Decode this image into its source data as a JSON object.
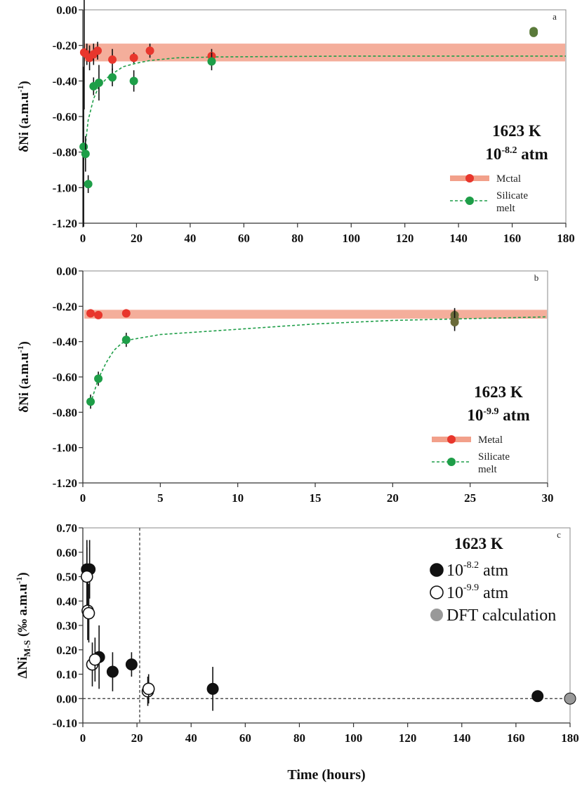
{
  "chart_data": [
    {
      "type": "scatter",
      "panel_label": "a",
      "ylabel_main": "δNi (a.m.u",
      "ylabel_sup": "-1",
      "ylabel_end": ")",
      "xlim": [
        0,
        180
      ],
      "ylim": [
        -1.2,
        0
      ],
      "x_ticks": [
        "0",
        "20",
        "40",
        "60",
        "80",
        "100",
        "120",
        "140",
        "160",
        "180"
      ],
      "y_ticks": [
        "0.00",
        "-0.20",
        "-0.40",
        "-0.60",
        "-0.80",
        "-1.00",
        "-1.20"
      ],
      "annotation": {
        "temperature": "1623 K",
        "pressure_base": "10",
        "pressure_exp": "-8.2",
        "pressure_unit": " atm"
      },
      "legend": [
        "Mctal",
        "Silicate",
        "melt"
      ],
      "metal_band": {
        "ymin": -0.29,
        "ymax": -0.19
      },
      "silicate_fit": [
        [
          0.3,
          -0.85
        ],
        [
          2,
          -0.62
        ],
        [
          4,
          -0.5
        ],
        [
          6,
          -0.43
        ],
        [
          10,
          -0.37
        ],
        [
          15,
          -0.32
        ],
        [
          20,
          -0.3
        ],
        [
          25,
          -0.285
        ],
        [
          35,
          -0.27
        ],
        [
          50,
          -0.265
        ],
        [
          100,
          -0.26
        ],
        [
          180,
          -0.26
        ]
      ],
      "series": [
        {
          "name": "Mctal",
          "color": "#e8362c",
          "points": [
            {
              "x": 0.5,
              "y": -0.24,
              "err": 0.32
            },
            {
              "x": 1.5,
              "y": -0.25,
              "err": 0.06
            },
            {
              "x": 2.5,
              "y": -0.27,
              "err": 0.07
            },
            {
              "x": 4,
              "y": -0.25,
              "err": 0.06
            },
            {
              "x": 5.5,
              "y": -0.23,
              "err": 0.05
            },
            {
              "x": 11,
              "y": -0.28,
              "err": 0.06
            },
            {
              "x": 19,
              "y": -0.27,
              "err": 0.03
            },
            {
              "x": 25,
              "y": -0.23,
              "err": 0.04
            },
            {
              "x": 48,
              "y": -0.26,
              "err": 0.04
            }
          ]
        },
        {
          "name": "Silicate melt",
          "color": "#1e9e48",
          "points": [
            {
              "x": 0.3,
              "y": -0.77,
              "err": 0.45
            },
            {
              "x": 1,
              "y": -0.81,
              "err": 0.1
            },
            {
              "x": 2,
              "y": -0.98,
              "err": 0.05
            },
            {
              "x": 4,
              "y": -0.43,
              "err": 0.05
            },
            {
              "x": 6,
              "y": -0.41,
              "err": 0.1
            },
            {
              "x": 11,
              "y": -0.38,
              "err": 0.05
            },
            {
              "x": 19,
              "y": -0.4,
              "err": 0.06
            },
            {
              "x": 48,
              "y": -0.29,
              "err": 0.05
            }
          ]
        },
        {
          "name": "",
          "color": "#5a7a3a",
          "points": [
            {
              "x": 168,
              "y": -0.12,
              "err": 0.02
            },
            {
              "x": 168,
              "y": -0.13,
              "err": 0.02
            }
          ]
        }
      ]
    },
    {
      "type": "scatter",
      "panel_label": "b",
      "ylabel_main": "δNi (a.m.u",
      "ylabel_sup": "-1",
      "ylabel_end": ")",
      "xlim": [
        0,
        30
      ],
      "ylim": [
        -1.2,
        0
      ],
      "x_ticks": [
        "0",
        "5",
        "10",
        "15",
        "20",
        "25",
        "30"
      ],
      "y_ticks": [
        "0.00",
        "-0.20",
        "-0.40",
        "-0.60",
        "-0.80",
        "-1.00",
        "-1.20"
      ],
      "annotation": {
        "temperature": "1623 K",
        "pressure_base": "10",
        "pressure_exp": "-9.9",
        "pressure_unit": " atm"
      },
      "legend": [
        "Metal",
        "Silicate",
        "melt"
      ],
      "metal_band": {
        "ymin": -0.27,
        "ymax": -0.22
      },
      "silicate_fit": [
        [
          0.5,
          -0.75
        ],
        [
          1,
          -0.61
        ],
        [
          1.5,
          -0.52
        ],
        [
          2,
          -0.45
        ],
        [
          2.5,
          -0.41
        ],
        [
          3,
          -0.39
        ],
        [
          5,
          -0.36
        ],
        [
          10,
          -0.33
        ],
        [
          15,
          -0.3
        ],
        [
          20,
          -0.28
        ],
        [
          25,
          -0.27
        ],
        [
          30,
          -0.26
        ]
      ],
      "series": [
        {
          "name": "Metal",
          "color": "#e8362c",
          "points": [
            {
              "x": 0.5,
              "y": -0.24,
              "err": 0.02
            },
            {
              "x": 1.0,
              "y": -0.25,
              "err": 0.02
            },
            {
              "x": 2.8,
              "y": -0.24,
              "err": 0.02
            }
          ]
        },
        {
          "name": "Silicate melt",
          "color": "#1e9e48",
          "points": [
            {
              "x": 0.5,
              "y": -0.74,
              "err": 0.04
            },
            {
              "x": 1.0,
              "y": -0.61,
              "err": 0.04
            },
            {
              "x": 2.8,
              "y": -0.39,
              "err": 0.04
            }
          ]
        },
        {
          "name": "",
          "color": "#6b6b3a",
          "points": [
            {
              "x": 24,
              "y": -0.25,
              "err": 0.04
            },
            {
              "x": 24,
              "y": -0.27,
              "err": 0.05
            },
            {
              "x": 24,
              "y": -0.29,
              "err": 0.05
            }
          ]
        }
      ]
    },
    {
      "type": "scatter",
      "panel_label": "c",
      "ylabel_main": "ΔNi",
      "ylabel_sub": "M-S",
      "ylabel_mid": " (‰ a.m.u",
      "ylabel_sup": "-1",
      "ylabel_end": ")",
      "xlabel": "Time (hours)",
      "xlim": [
        0,
        180
      ],
      "ylim": [
        -0.1,
        0.7
      ],
      "x_ticks": [
        "0",
        "20",
        "40",
        "60",
        "80",
        "100",
        "120",
        "140",
        "160",
        "180"
      ],
      "y_ticks": [
        "0.70",
        "0.60",
        "0.50",
        "0.40",
        "0.30",
        "0.20",
        "0.10",
        "0.00",
        "-0.10"
      ],
      "legend_title": "1623 K",
      "legend": [
        {
          "base": "10",
          "exp": "-8.2",
          "unit": " atm"
        },
        {
          "base": "10",
          "exp": "-9.9",
          "unit": " atm"
        },
        {
          "base": "DFT calculation",
          "exp": "",
          "unit": ""
        }
      ],
      "vline_x": 21,
      "hline_y": 0,
      "series": [
        {
          "name": "10-8.2 atm",
          "color": "#111111",
          "points": [
            {
              "x": 1.5,
              "y": 0.53,
              "err": 0.12
            },
            {
              "x": 2.5,
              "y": 0.53,
              "err": 0.12
            },
            {
              "x": 6,
              "y": 0.17,
              "err": 0.13
            },
            {
              "x": 11,
              "y": 0.11,
              "err": 0.08
            },
            {
              "x": 18,
              "y": 0.14,
              "err": 0.05
            },
            {
              "x": 48,
              "y": 0.04,
              "err": 0.09
            },
            {
              "x": 168,
              "y": 0.01,
              "err": 0.01
            }
          ]
        },
        {
          "name": "10-9.9 atm",
          "color": "#ffffff",
          "points": [
            {
              "x": 1.5,
              "y": 0.5,
              "err": 0.12
            },
            {
              "x": 1.8,
              "y": 0.36,
              "err": 0.12
            },
            {
              "x": 2.2,
              "y": 0.35,
              "err": 0.12
            },
            {
              "x": 3.5,
              "y": 0.14,
              "err": 0.09
            },
            {
              "x": 4.5,
              "y": 0.16,
              "err": 0.09
            },
            {
              "x": 24,
              "y": 0.03,
              "err": 0.06
            },
            {
              "x": 24.3,
              "y": 0.04,
              "err": 0.06
            }
          ]
        },
        {
          "name": "DFT calculation",
          "color": "#999999",
          "points": [
            {
              "x": 180,
              "y": 0.0,
              "err": 0
            }
          ]
        }
      ]
    }
  ]
}
